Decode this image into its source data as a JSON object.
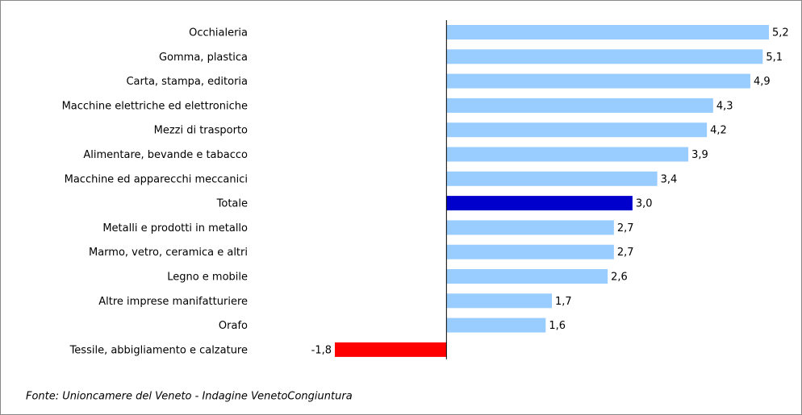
{
  "chart_data": {
    "type": "hbar",
    "categories": [
      "Occhialeria",
      "Gomma, plastica",
      "Carta, stampa, editoria",
      "Macchine elettriche ed elettroniche",
      "Mezzi di trasporto",
      "Alimentare, bevande e tabacco",
      "Macchine ed apparecchi meccanici",
      "Totale",
      "Metalli e prodotti in metallo",
      "Marmo, vetro, ceramica e altri",
      "Legno e mobile",
      "Altre imprese manifatturiere",
      "Orafo",
      "Tessile, abbigliamento e calzature"
    ],
    "values": [
      5.2,
      5.1,
      4.9,
      4.3,
      4.2,
      3.9,
      3.4,
      3.0,
      2.7,
      2.7,
      2.6,
      1.7,
      1.6,
      -1.8
    ],
    "value_labels": [
      "5,2",
      "5,1",
      "4,9",
      "4,3",
      "4,2",
      "3,9",
      "3,4",
      "3,0",
      "2,7",
      "2,7",
      "2,6",
      "1,7",
      "1,6",
      "-1,8"
    ],
    "colors": [
      "#99ccff",
      "#99ccff",
      "#99ccff",
      "#99ccff",
      "#99ccff",
      "#99ccff",
      "#99ccff",
      "#0000cc",
      "#99ccff",
      "#99ccff",
      "#99ccff",
      "#99ccff",
      "#99ccff",
      "#ff0000"
    ],
    "source": "Fonte: Unioncamere del Veneto - Indagine VenetoCongiuntura"
  }
}
